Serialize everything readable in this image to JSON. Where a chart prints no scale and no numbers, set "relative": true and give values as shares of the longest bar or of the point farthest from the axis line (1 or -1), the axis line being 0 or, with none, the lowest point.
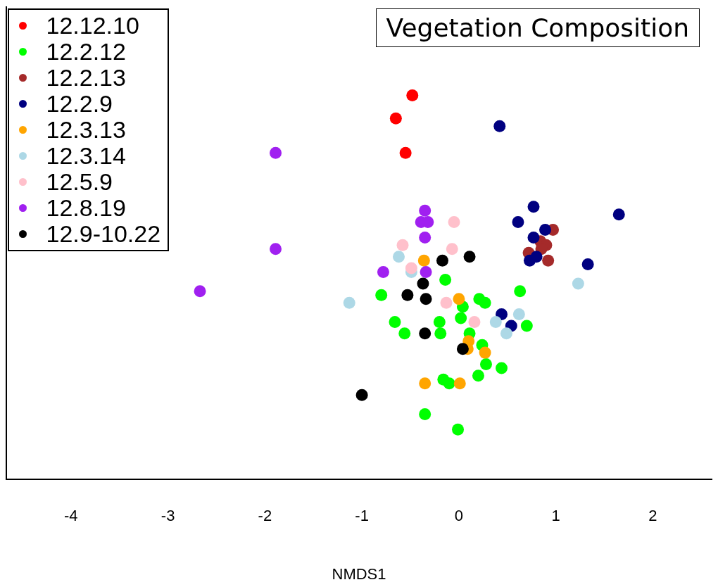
{
  "chart_data": {
    "type": "scatter",
    "title": "Vegetation Composition",
    "xlabel": "NMDS1",
    "relative": true,
    "xlim": [
      -4.67,
      2.61
    ],
    "xticks": [
      -4,
      -3,
      -2,
      -1,
      0,
      1,
      2
    ],
    "grid": false,
    "legend": "top left",
    "marker": "circle",
    "series": [
      {
        "name": "12.12.10",
        "color": "#ff0000",
        "x": [
          -0.48,
          -0.65,
          -0.55
        ],
        "values": [
          1.0,
          0.94,
          0.85
        ]
      },
      {
        "name": "12.2.12",
        "color": "#00ff00",
        "x": [
          -0.14,
          0.63,
          -0.8,
          0.21,
          0.27,
          0.04,
          0.02,
          -0.66,
          -0.56,
          -0.2,
          -0.19,
          0.11,
          0.24,
          0.7,
          0.28,
          0.44,
          0.2,
          -0.16,
          -0.1,
          -0.35,
          -0.01
        ],
        "values": [
          0.52,
          0.49,
          0.48,
          0.47,
          0.46,
          0.45,
          0.42,
          0.41,
          0.38,
          0.41,
          0.38,
          0.38,
          0.35,
          0.4,
          0.3,
          0.29,
          0.27,
          0.26,
          0.25,
          0.17,
          0.13
        ]
      },
      {
        "name": "12.2.13",
        "color": "#a52a2a",
        "x": [
          0.97,
          0.84,
          0.9,
          0.72,
          0.92,
          0.85
        ],
        "values": [
          0.65,
          0.62,
          0.61,
          0.59,
          0.57,
          0.6
        ]
      },
      {
        "name": "12.2.9",
        "color": "#000080",
        "x": [
          0.42,
          0.77,
          0.61,
          1.65,
          0.77,
          0.89,
          0.73,
          0.8,
          1.33,
          0.44,
          0.54
        ],
        "values": [
          0.92,
          0.71,
          0.67,
          0.69,
          0.63,
          0.65,
          0.57,
          0.58,
          0.56,
          0.43,
          0.4
        ]
      },
      {
        "name": "12.3.13",
        "color": "#ffa500",
        "x": [
          -0.36,
          0.0,
          0.1,
          0.09,
          0.27,
          -0.35,
          0.01
        ],
        "values": [
          0.57,
          0.47,
          0.36,
          0.34,
          0.33,
          0.25,
          0.25
        ]
      },
      {
        "name": "12.3.14",
        "color": "#add8e6",
        "x": [
          -0.62,
          -0.49,
          1.23,
          -1.13,
          0.62,
          0.38,
          0.49
        ],
        "values": [
          0.58,
          0.54,
          0.51,
          0.46,
          0.43,
          0.41,
          0.38
        ]
      },
      {
        "name": "12.5.9",
        "color": "#ffc0cb",
        "x": [
          -0.58,
          -0.49,
          -0.05,
          -0.07,
          -0.13,
          0.16
        ],
        "values": [
          0.61,
          0.55,
          0.67,
          0.6,
          0.46,
          0.41
        ]
      },
      {
        "name": "12.8.19",
        "color": "#a020f0",
        "x": [
          -1.89,
          -1.89,
          -2.67,
          -0.35,
          -0.39,
          -0.32,
          -0.35,
          -0.78,
          -0.34
        ],
        "values": [
          0.85,
          0.6,
          0.49,
          0.7,
          0.67,
          0.67,
          0.63,
          0.54,
          0.54
        ]
      },
      {
        "name": "12.9-10.22",
        "color": "#000000",
        "x": [
          0.11,
          -0.17,
          -0.37,
          -0.53,
          -0.34,
          -0.35,
          0.04,
          -1.0
        ],
        "values": [
          0.58,
          0.57,
          0.51,
          0.48,
          0.47,
          0.38,
          0.34,
          0.22
        ]
      }
    ]
  }
}
